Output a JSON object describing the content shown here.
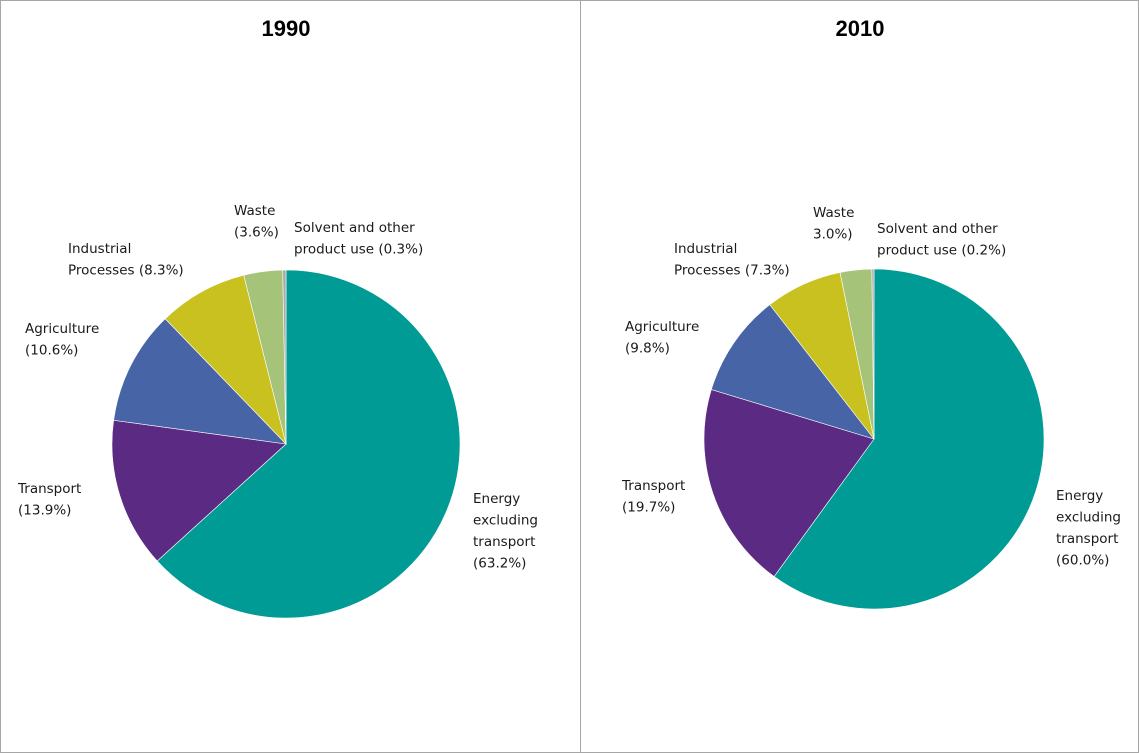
{
  "chart_data": [
    {
      "type": "pie",
      "title": "1990",
      "categories": [
        "Energy excluding transport",
        "Transport",
        "Agriculture",
        "Industrial Processes",
        "Waste",
        "Solvent and other product use"
      ],
      "values": [
        63.2,
        13.9,
        10.6,
        8.3,
        3.6,
        0.3
      ],
      "unit": "%",
      "colors": [
        "#009b95",
        "#5b2a82",
        "#4664a6",
        "#c9c11f",
        "#a6c37a",
        "#a9a9a9"
      ],
      "labels": [
        [
          "Energy",
          "excluding",
          "transport",
          "(63.2%)"
        ],
        [
          "Transport",
          "(13.9%)"
        ],
        [
          "Agriculture",
          "(10.6%)"
        ],
        [
          "Industrial",
          "Processes (8.3%)"
        ],
        [
          "Waste",
          "(3.6%)"
        ],
        [
          "Solvent and other",
          "product use (0.3%)"
        ]
      ]
    },
    {
      "type": "pie",
      "title": "2010",
      "categories": [
        "Energy excluding transport",
        "Transport",
        "Agriculture",
        "Industrial Processes",
        "Waste",
        "Solvent and other product use"
      ],
      "values": [
        60.0,
        19.7,
        9.8,
        7.3,
        3.0,
        0.2
      ],
      "unit": "%",
      "colors": [
        "#009b95",
        "#5b2a82",
        "#4664a6",
        "#c9c11f",
        "#a6c37a",
        "#a9a9a9"
      ],
      "labels": [
        [
          "Energy",
          "excluding",
          "transport",
          "(60.0%)"
        ],
        [
          "Transport",
          "(19.7%)"
        ],
        [
          "Agriculture",
          "(9.8%)"
        ],
        [
          "Industrial",
          "Processes (7.3%)"
        ],
        [
          "Waste",
          "3.0%)"
        ],
        [
          "Solvent and other",
          "product use (0.2%)"
        ]
      ]
    }
  ]
}
